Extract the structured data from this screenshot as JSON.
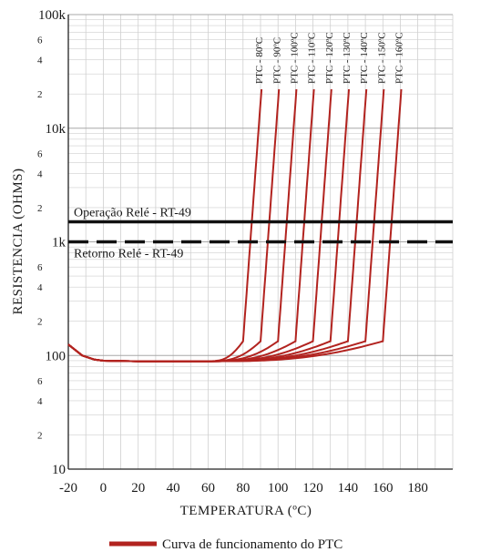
{
  "chart_data": {
    "type": "line",
    "title": "",
    "xlabel": "TEMPERATURA (ºC)",
    "ylabel": "RESISTENCIA (OHMS)",
    "x_scale": "linear",
    "y_scale": "log",
    "xlim": [
      -20,
      200
    ],
    "ylim": [
      10,
      100000
    ],
    "grid": true,
    "x_ticks": [
      -20,
      0,
      20,
      40,
      60,
      80,
      100,
      120,
      140,
      160,
      180
    ],
    "x_tick_labels": [
      "-20",
      "0",
      "20",
      "40",
      "60",
      "80",
      "100",
      "120",
      "140",
      "160",
      "180"
    ],
    "y_major_ticks": [
      {
        "value": 10,
        "label": "10"
      },
      {
        "value": 100,
        "label": "100"
      },
      {
        "value": 1000,
        "label": "1k"
      },
      {
        "value": 10000,
        "label": "10k"
      },
      {
        "value": 100000,
        "label": "100k"
      }
    ],
    "y_minor_ticks": [
      {
        "mult": 2,
        "label": "2"
      },
      {
        "mult": 4,
        "label": "4"
      },
      {
        "mult": 6,
        "label": "6"
      }
    ],
    "series_color": "#b2231f",
    "series": [
      {
        "name": "PTC - 80ºC",
        "tr": 80
      },
      {
        "name": "PTC - 90ºC",
        "tr": 90
      },
      {
        "name": "PTC - 100ºC",
        "tr": 100
      },
      {
        "name": "PTC - 110ºC",
        "tr": 110
      },
      {
        "name": "PTC - 120ºC",
        "tr": 120
      },
      {
        "name": "PTC - 130ºC",
        "tr": 130
      },
      {
        "name": "PTC - 140ºC",
        "tr": 140
      },
      {
        "name": "PTC - 150ºC",
        "tr": 150
      },
      {
        "name": "PTC - 160ºC",
        "tr": 160
      }
    ],
    "baseline_points": [
      [
        -20,
        125
      ],
      [
        -12,
        100
      ],
      [
        -5,
        92
      ],
      [
        0,
        90
      ],
      [
        20,
        89
      ],
      [
        40,
        89
      ],
      [
        60,
        89
      ]
    ],
    "reference_lines": [
      {
        "label": "Operação Relé - RT-49",
        "value": 1500,
        "style": "solid",
        "color": "#111111"
      },
      {
        "label": "Retorno Relé - RT-49",
        "value": 1000,
        "style": "dashed",
        "color": "#111111"
      }
    ],
    "legend": {
      "label": "Curva de funcionamento do PTC",
      "position": "bottom-center"
    }
  }
}
